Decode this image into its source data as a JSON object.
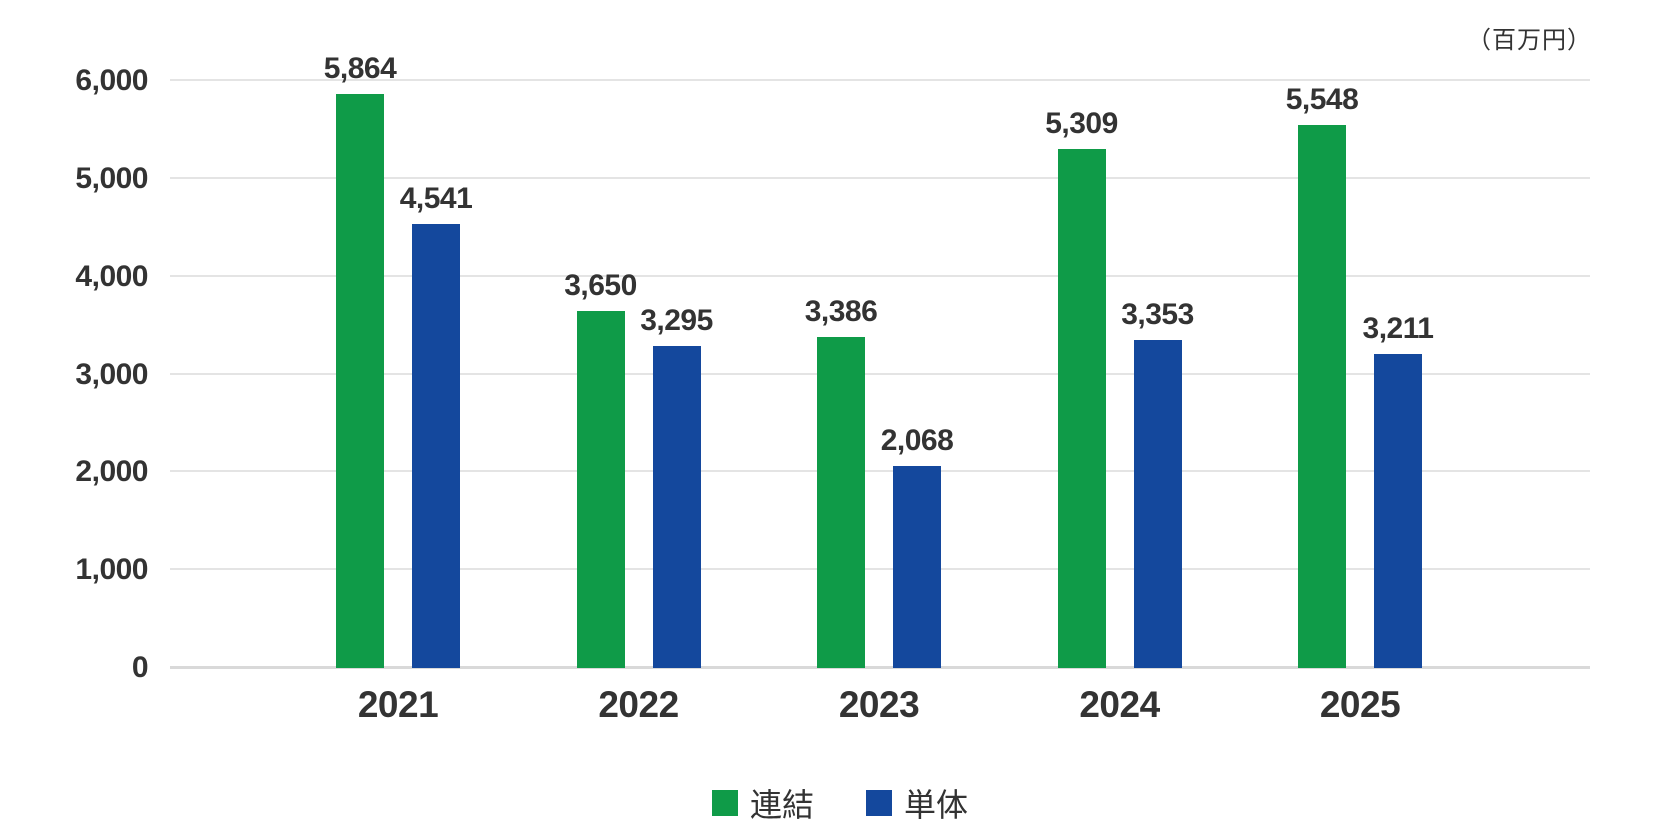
{
  "chart_data": {
    "type": "bar",
    "title": "",
    "xlabel": "",
    "ylabel": "",
    "unit": "（百万円）",
    "categories": [
      "2021",
      "2022",
      "2023",
      "2024",
      "2025"
    ],
    "series": [
      {
        "name": "連結",
        "color": "#0f9b48",
        "values": [
          5864,
          3650,
          3386,
          5309,
          5548
        ],
        "labels": [
          "5,864",
          "3,650",
          "3,386",
          "5,309",
          "5,548"
        ]
      },
      {
        "name": "単体",
        "color": "#14489d",
        "values": [
          4541,
          3295,
          2068,
          3353,
          3211
        ],
        "labels": [
          "4,541",
          "3,295",
          "2,068",
          "3,353",
          "3,211"
        ]
      }
    ],
    "ylim": [
      0,
      6000
    ],
    "ytick_step": 1000,
    "yticks": [
      "0",
      "1,000",
      "2,000",
      "3,000",
      "4,000",
      "5,000",
      "6,000"
    ],
    "grid": true,
    "legend_position": "bottom",
    "legend": [
      "連結",
      "単体"
    ]
  },
  "colors": {
    "consolidated_green": "#0f9b48",
    "standalone_blue": "#14489d",
    "grid_line": "#e4e4e4",
    "axis_line": "#d9d9d9",
    "text": "#333333",
    "background": "#ffffff"
  }
}
